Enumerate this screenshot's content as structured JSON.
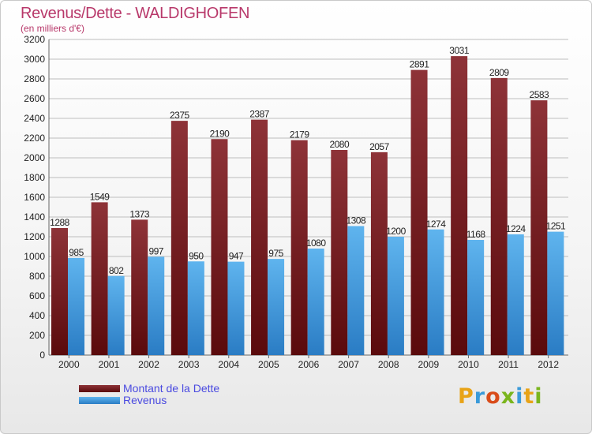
{
  "title": "Revenus/Dette - WALDIGHOFEN",
  "subtitle": "(en milliers d'€)",
  "logo": {
    "text": "Proxiti",
    "letter_colors": [
      "#e8a317",
      "#3a9ad9",
      "#d94c1a",
      "#7ab51d",
      "#3a9ad9",
      "#e8a317",
      "#7ab51d"
    ]
  },
  "colors": {
    "dette": "#7a1f22",
    "revenus": "#3f9ee0",
    "axis_text": "#222222",
    "grid": "#bdbdbd"
  },
  "chart_data": {
    "type": "bar",
    "categories": [
      "2000",
      "2001",
      "2002",
      "2003",
      "2004",
      "2005",
      "2006",
      "2007",
      "2008",
      "2009",
      "2010",
      "2011",
      "2012"
    ],
    "series": [
      {
        "name": "Montant de la Dette",
        "values": [
          1288,
          1549,
          1373,
          2375,
          2190,
          2387,
          2179,
          2080,
          2057,
          2891,
          3031,
          2809,
          2583
        ]
      },
      {
        "name": "Revenus",
        "values": [
          985,
          802,
          997,
          950,
          947,
          975,
          1080,
          1308,
          1200,
          1274,
          1168,
          1224,
          1251
        ]
      }
    ],
    "ylim": [
      0,
      3200
    ],
    "yticks": [
      0,
      200,
      400,
      600,
      800,
      1000,
      1200,
      1400,
      1600,
      1800,
      2000,
      2200,
      2400,
      2600,
      2800,
      3000,
      3200
    ],
    "grid": true,
    "legend_position": "bottom-left"
  }
}
